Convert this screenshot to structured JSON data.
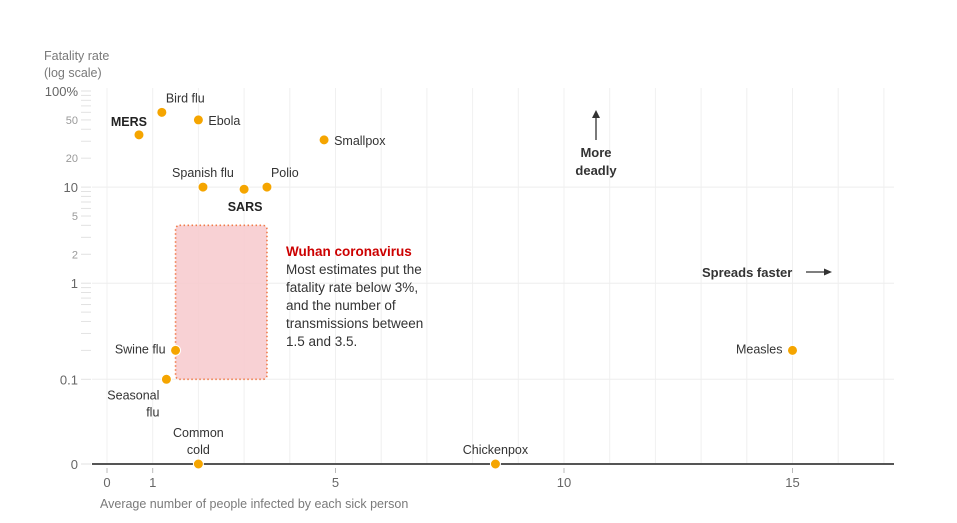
{
  "chart_data": {
    "type": "scatter",
    "title": "",
    "ylabel_lines": [
      "Fatality rate",
      "(log scale)"
    ],
    "xlabel": "Average number of people infected by each sick person",
    "x_ticks": [
      0,
      1,
      5,
      10,
      15
    ],
    "x_tick_labels": [
      "0",
      "1",
      "5",
      "10",
      "15"
    ],
    "xlim": [
      0,
      17
    ],
    "y_scale": "log",
    "y_ticks_major": [
      {
        "value": 100,
        "label": "100%"
      },
      {
        "value": 10,
        "label": "10"
      },
      {
        "value": 1,
        "label": "1"
      },
      {
        "value": 0.1,
        "label": "0.1"
      },
      {
        "value": 0,
        "label": "0"
      }
    ],
    "y_ticks_minor": [
      {
        "value": 50,
        "label": "50"
      },
      {
        "value": 20,
        "label": "20"
      },
      {
        "value": 5,
        "label": "5"
      },
      {
        "value": 2,
        "label": "2"
      }
    ],
    "ylim": [
      0.1,
      100
    ],
    "grid": true,
    "point_color": "#f5a500",
    "points": [
      {
        "name": "MERS",
        "x": 0.7,
        "y": 35,
        "bold": true,
        "label_pos": "above-left"
      },
      {
        "name": "Bird flu",
        "x": 1.2,
        "y": 60,
        "bold": false,
        "label_pos": "above-right"
      },
      {
        "name": "Ebola",
        "x": 2.0,
        "y": 50,
        "bold": false,
        "label_pos": "right"
      },
      {
        "name": "Smallpox",
        "x": 4.75,
        "y": 31,
        "bold": false,
        "label_pos": "right"
      },
      {
        "name": "Spanish flu",
        "x": 2.1,
        "y": 10,
        "bold": false,
        "label_pos": "above"
      },
      {
        "name": "SARS",
        "x": 3.0,
        "y": 9.5,
        "bold": true,
        "label_pos": "below"
      },
      {
        "name": "Polio",
        "x": 3.5,
        "y": 10,
        "bold": false,
        "label_pos": "above-right"
      },
      {
        "name": "Swine flu",
        "x": 1.5,
        "y": 0.2,
        "bold": false,
        "label_pos": "left"
      },
      {
        "name": "Seasonal flu",
        "x": 1.3,
        "y": 0.1,
        "bold": false,
        "label_pos": "below-left"
      },
      {
        "name": "Measles",
        "x": 15,
        "y": 0.2,
        "bold": false,
        "label_pos": "left"
      },
      {
        "name": "Common cold",
        "x": 2.0,
        "y": 0,
        "bold": false,
        "label_pos": "above"
      },
      {
        "name": "Chickenpox",
        "x": 8.5,
        "y": 0,
        "bold": false,
        "label_pos": "above"
      }
    ],
    "highlight_region": {
      "name": "Wuhan coronavirus",
      "x_range": [
        1.5,
        3.5
      ],
      "y_range": [
        0.1,
        4
      ],
      "fill": "#f7c9cc",
      "border": "#f07b4a"
    },
    "annotation": {
      "title": "Wuhan coronavirus",
      "title_color": "#cc0000",
      "lines": [
        "Most estimates put the",
        "fatality rate below 3%,",
        "and the number of",
        "transmissions between",
        "1.5 and 3.5."
      ]
    },
    "hints": {
      "deadly": [
        "More",
        "deadly"
      ],
      "faster": "Spreads faster"
    }
  }
}
